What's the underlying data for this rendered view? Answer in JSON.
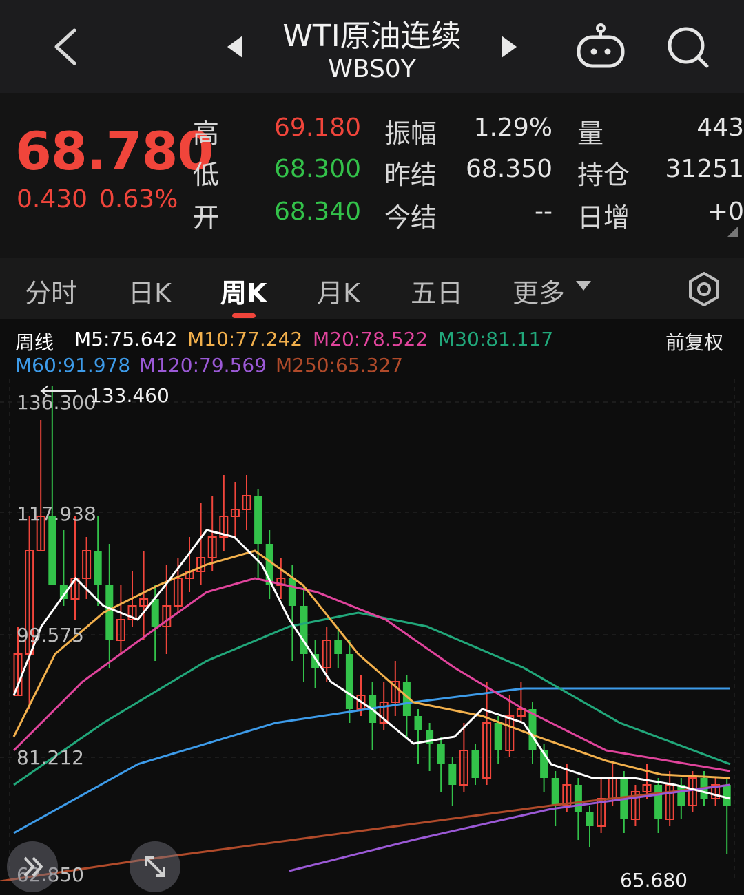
{
  "header": {
    "title": "WTI原油连续",
    "code": "WBS0Y",
    "icons": [
      "back-chevron-icon",
      "prev-triangle-icon",
      "next-triangle-icon",
      "robot-icon",
      "search-icon"
    ]
  },
  "quote": {
    "price": "68.780",
    "change": "0.430",
    "change_pct": "0.63%",
    "fields": [
      {
        "label": "高",
        "value": "69.180"
      },
      {
        "label": "低",
        "value": "68.300"
      },
      {
        "label": "开",
        "value": "68.340"
      },
      {
        "label": "振幅",
        "value": "1.29%"
      },
      {
        "label": "昨结",
        "value": "68.350"
      },
      {
        "label": "今结",
        "value": "--"
      },
      {
        "label": "量",
        "value": "443"
      },
      {
        "label": "持仓",
        "value": "31251"
      },
      {
        "label": "日增",
        "value": "+0"
      }
    ],
    "colors": {
      "up": "#f0453b",
      "down": "#33c24a"
    }
  },
  "tabs": [
    "分时",
    "日K",
    "周K",
    "月K",
    "五日",
    "更多"
  ],
  "active_tab": "周K",
  "indicators": {
    "period": "周线",
    "adjust": "前复权",
    "ma": [
      {
        "label": "M5:75.642",
        "color": "#ffffff"
      },
      {
        "label": "M10:77.242",
        "color": "#f2b04c"
      },
      {
        "label": "M20:78.522",
        "color": "#e0449c"
      },
      {
        "label": "M30:81.117",
        "color": "#21a77a"
      },
      {
        "label": "M60:91.978",
        "color": "#3d9be9"
      },
      {
        "label": "M120:79.569",
        "color": "#9b59d6"
      },
      {
        "label": "M250:65.327",
        "color": "#b04a2a"
      }
    ]
  },
  "chart_data": {
    "type": "candlestick",
    "y_ticks": [
      "136.300",
      "117.938",
      "99.575",
      "81.212",
      "62.850"
    ],
    "annotations": {
      "high": "133.460",
      "low": "65.680"
    },
    "ylim": [
      62.85,
      136.3
    ]
  }
}
